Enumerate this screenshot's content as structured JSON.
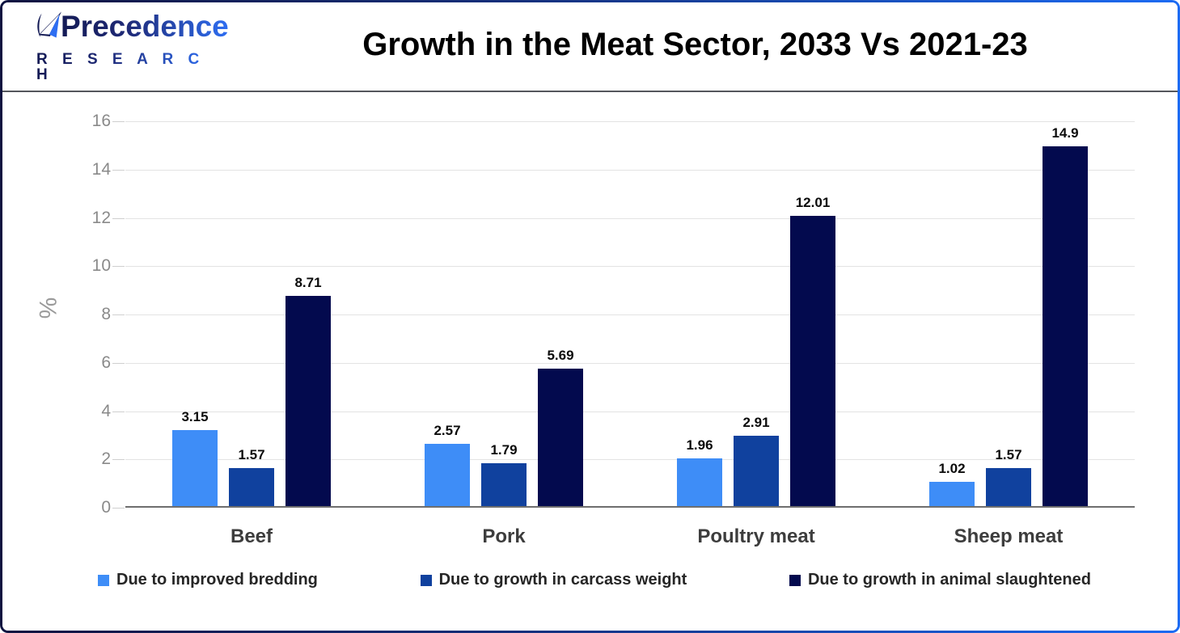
{
  "header": {
    "logo": {
      "name": "Precedence",
      "subname": "R E S E A R C H"
    }
  },
  "chart_data": {
    "type": "bar",
    "title": "Growth in the Meat Sector, 2033 Vs 2021-23",
    "categories": [
      "Beef",
      "Pork",
      "Poultry meat",
      "Sheep meat"
    ],
    "series": [
      {
        "name": "Due to improved bredding",
        "color": "#3E8DF7",
        "values": [
          3.15,
          2.57,
          1.96,
          1.02
        ]
      },
      {
        "name": "Due to growth in carcass weight",
        "color": "#10419E",
        "values": [
          1.57,
          1.79,
          2.91,
          1.57
        ]
      },
      {
        "name": "Due to growth in animal slaughtened",
        "color": "#030A4E",
        "values": [
          8.71,
          5.69,
          12.01,
          14.9
        ]
      }
    ],
    "xlabel": "",
    "ylabel": "%",
    "ylim": [
      0,
      16
    ],
    "ytick_step": 2,
    "grid": true,
    "legend_position": "bottom"
  },
  "colors": {
    "grid": "#e3e3e3",
    "axis": "#6e6e6e",
    "tick_label": "#8a8a8a",
    "category_label": "#3d3d3d",
    "value_label": "#0b0b0b",
    "border_gradient_start": "#0e1340",
    "border_gradient_end": "#1c6bf3"
  }
}
